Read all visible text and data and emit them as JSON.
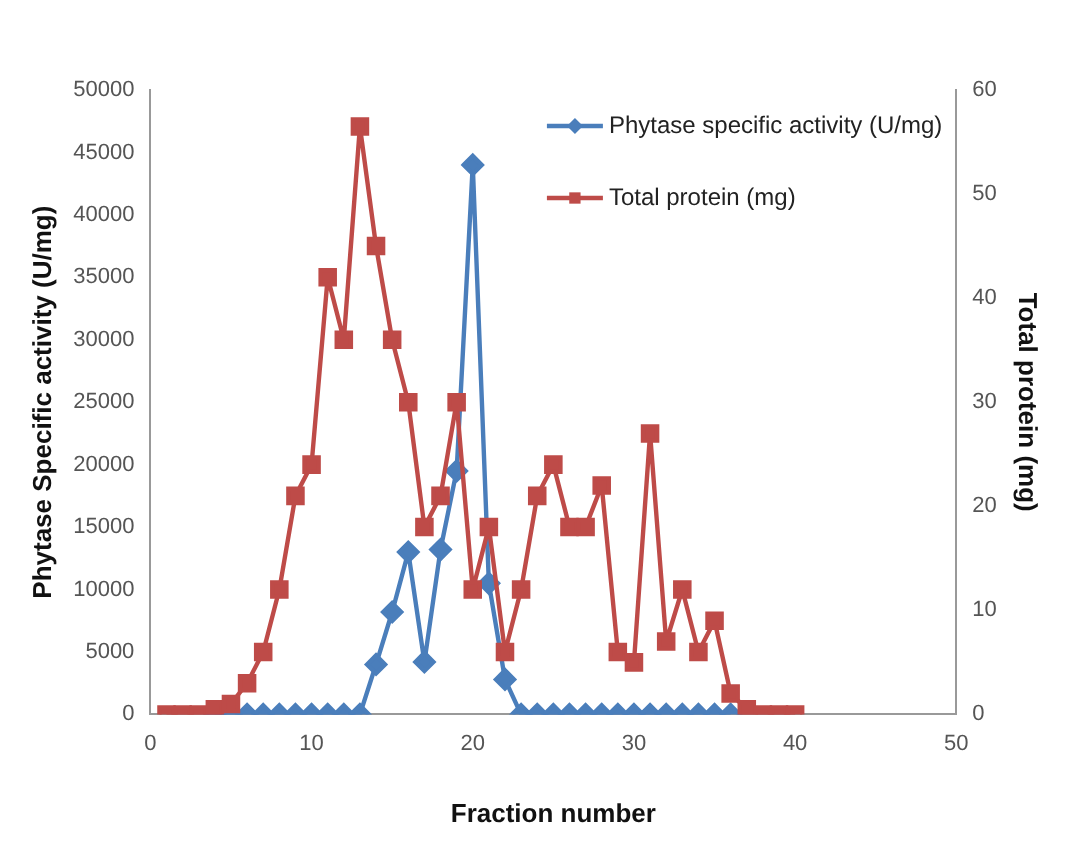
{
  "chart_data": {
    "type": "line",
    "xlabel": "Fraction number",
    "ylabel": "Phytase Specific activity (U/mg)",
    "y2label": "Total protein (mg)",
    "xlim": [
      0,
      50
    ],
    "xticks": [
      0,
      10,
      20,
      30,
      40,
      50
    ],
    "ylim": [
      0,
      50000
    ],
    "yticks": [
      0,
      5000,
      10000,
      15000,
      20000,
      25000,
      30000,
      35000,
      40000,
      45000,
      50000
    ],
    "y2lim": [
      0,
      60
    ],
    "y2ticks": [
      0,
      10,
      20,
      30,
      40,
      50,
      60
    ],
    "grid": false,
    "legend": "top right",
    "series": [
      {
        "name": "Phytase specific activity (U/mg)",
        "color": "#4a7ebb",
        "marker": "diamond",
        "x": [
          4,
          5,
          6,
          7,
          8,
          9,
          10,
          11,
          12,
          13,
          14,
          15,
          16,
          17,
          18,
          19,
          20,
          21,
          22,
          23,
          24,
          25,
          26,
          27,
          28,
          29,
          30,
          31,
          32,
          33,
          34,
          35,
          36
        ],
        "values": [
          0,
          0,
          0,
          0,
          0,
          0,
          0,
          0,
          0,
          0,
          4000,
          8200,
          13000,
          4200,
          13200,
          19500,
          44000,
          10500,
          2800,
          0,
          0,
          0,
          0,
          0,
          0,
          0,
          0,
          0,
          0,
          0,
          0,
          0,
          0
        ]
      },
      {
        "name": "Total protein (mg)",
        "color": "#be4b48",
        "marker": "square",
        "axis": "y2",
        "x": [
          1,
          2,
          3,
          4,
          5,
          6,
          7,
          8,
          9,
          10,
          11,
          12,
          13,
          14,
          15,
          16,
          17,
          18,
          19,
          20,
          21,
          22,
          23,
          24,
          25,
          26,
          27,
          28,
          29,
          30,
          31,
          32,
          33,
          34,
          35,
          36,
          37,
          38,
          39,
          40
        ],
        "values": [
          0,
          0,
          0,
          0.5,
          1,
          3,
          6,
          12,
          21,
          24,
          42,
          36,
          56.5,
          45,
          36,
          30,
          18,
          21,
          30,
          12,
          18,
          6,
          12,
          21,
          24,
          18,
          18,
          22,
          6,
          5,
          27,
          7,
          12,
          6,
          9,
          2,
          0.5,
          0,
          0,
          0
        ]
      }
    ]
  }
}
